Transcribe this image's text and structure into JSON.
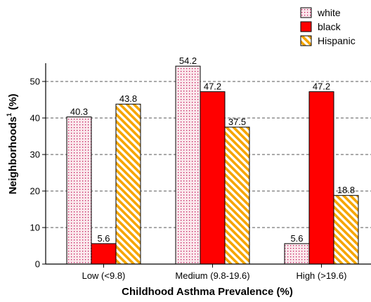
{
  "chart_data": {
    "type": "bar",
    "categories": [
      "Low (<9.8)",
      "Medium (9.8-19.6)",
      "High (>19.6)"
    ],
    "series": [
      {
        "name": "white",
        "values": [
          40.3,
          54.2,
          5.6
        ],
        "color": "#f2c7cf",
        "pattern": "dots"
      },
      {
        "name": "black",
        "values": [
          5.6,
          47.2,
          47.2
        ],
        "color": "#ff0000",
        "pattern": "solid"
      },
      {
        "name": "Hispanic",
        "values": [
          43.8,
          37.5,
          18.8
        ],
        "color": "#f5a500",
        "pattern": "diagonal-stripes"
      }
    ],
    "data_labels": [
      [
        "40.3",
        "54.2",
        "5.6"
      ],
      [
        "5.6",
        "47.2",
        "47.2"
      ],
      [
        "43.8",
        "37.5",
        "18.8"
      ]
    ],
    "xlabel": "Childhood Asthma Prevalence (%)",
    "ylabel": "Neighborhoods",
    "ylabel_superscript": "1",
    "ylabel_suffix": " (%)",
    "yticks": [
      "0",
      "10",
      "20",
      "30",
      "40",
      "50"
    ],
    "ylim": [
      0,
      55
    ],
    "grid": "horizontal-dashed",
    "legend_position": "top-right"
  }
}
